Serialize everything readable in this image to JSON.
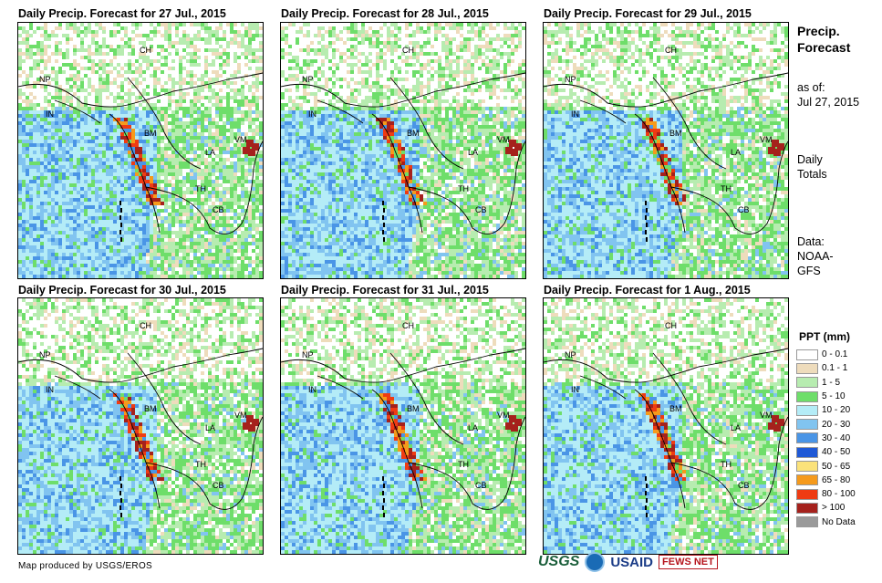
{
  "panels": [
    {
      "title": "Daily Precip. Forecast for 27 Jul., 2015"
    },
    {
      "title": "Daily Precip. Forecast for 28 Jul., 2015"
    },
    {
      "title": "Daily Precip. Forecast for 29 Jul., 2015"
    },
    {
      "title": "Daily Precip. Forecast for 30 Jul., 2015"
    },
    {
      "title": "Daily Precip. Forecast for 31 Jul., 2015"
    },
    {
      "title": "Daily Precip. Forecast for 1 Aug., 2015"
    }
  ],
  "country_labels": {
    "ch": "CH",
    "np": "NP",
    "in": "IN",
    "bm": "BM",
    "la": "LA",
    "vm": "VM",
    "th": "TH",
    "cb": "CB"
  },
  "side": {
    "heading_line1": "Precip.",
    "heading_line2": "Forecast",
    "asof_line1": "as of:",
    "asof_line2": "Jul 27, 2015",
    "daily_line1": "Daily",
    "daily_line2": "Totals",
    "data_line1": "Data:",
    "data_line2": "NOAA-",
    "data_line3": "GFS"
  },
  "legend": {
    "title": "PPT (mm)",
    "items": [
      {
        "label": "0 - 0.1",
        "color": "#ffffff"
      },
      {
        "label": "0.1 - 1",
        "color": "#eedcbc"
      },
      {
        "label": "1 - 5",
        "color": "#b7ecb0"
      },
      {
        "label": "5 - 10",
        "color": "#6ede6a"
      },
      {
        "label": "10 - 20",
        "color": "#b4ecf7"
      },
      {
        "label": "20 - 30",
        "color": "#81c4f0"
      },
      {
        "label": "30 - 40",
        "color": "#4a95e6"
      },
      {
        "label": "40 - 50",
        "color": "#1f59d6"
      },
      {
        "label": "50 - 65",
        "color": "#fbe27a"
      },
      {
        "label": "65 - 80",
        "color": "#f59a1c"
      },
      {
        "label": "80 - 100",
        "color": "#ef3b13"
      },
      {
        "label": "> 100",
        "color": "#a5211c"
      },
      {
        "label": "No Data",
        "color": "#9a9a9a"
      }
    ]
  },
  "credit": "Map produced by USGS/EROS",
  "logos": {
    "usgs": "USGS",
    "usaid": "USAID",
    "fews": "FEWS NET"
  }
}
